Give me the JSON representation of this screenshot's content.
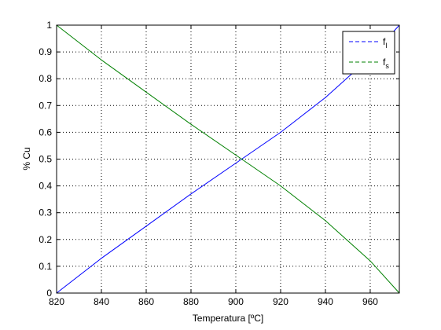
{
  "chart_data": {
    "type": "line",
    "title": "",
    "xlabel": "Temperatura [ºC]",
    "ylabel": "% Cu",
    "xlim": [
      820,
      973
    ],
    "ylim": [
      0,
      1
    ],
    "xticks": [
      820,
      840,
      860,
      880,
      900,
      920,
      940,
      960
    ],
    "xtick_labels": [
      "820",
      "840",
      "860",
      "880",
      "900",
      "920",
      "940",
      "960"
    ],
    "yticks": [
      0,
      0.1,
      0.2,
      0.3,
      0.4,
      0.5,
      0.6,
      0.7,
      0.8,
      0.9,
      1
    ],
    "ytick_labels": [
      "0",
      "0.1",
      "0.2",
      "0.3",
      "0.4",
      "0.5",
      "0.6",
      "0.7",
      "0.8",
      "0.9",
      "1"
    ],
    "grid": true,
    "legend_position": "top-right",
    "series": [
      {
        "name": "f_l",
        "label_main": "f",
        "label_sub": "l",
        "color": "#0000ff",
        "line_style": "dashed",
        "x": [
          820,
          840,
          860,
          880,
          900,
          920,
          940,
          960,
          973
        ],
        "y": [
          0,
          0.13,
          0.25,
          0.37,
          0.485,
          0.6,
          0.73,
          0.88,
          1
        ]
      },
      {
        "name": "f_s",
        "label_main": "f",
        "label_sub": "s",
        "color": "#008000",
        "line_style": "dashed",
        "x": [
          820,
          840,
          860,
          880,
          900,
          920,
          940,
          960,
          973
        ],
        "y": [
          1,
          0.87,
          0.75,
          0.63,
          0.515,
          0.4,
          0.27,
          0.12,
          0
        ]
      }
    ]
  }
}
